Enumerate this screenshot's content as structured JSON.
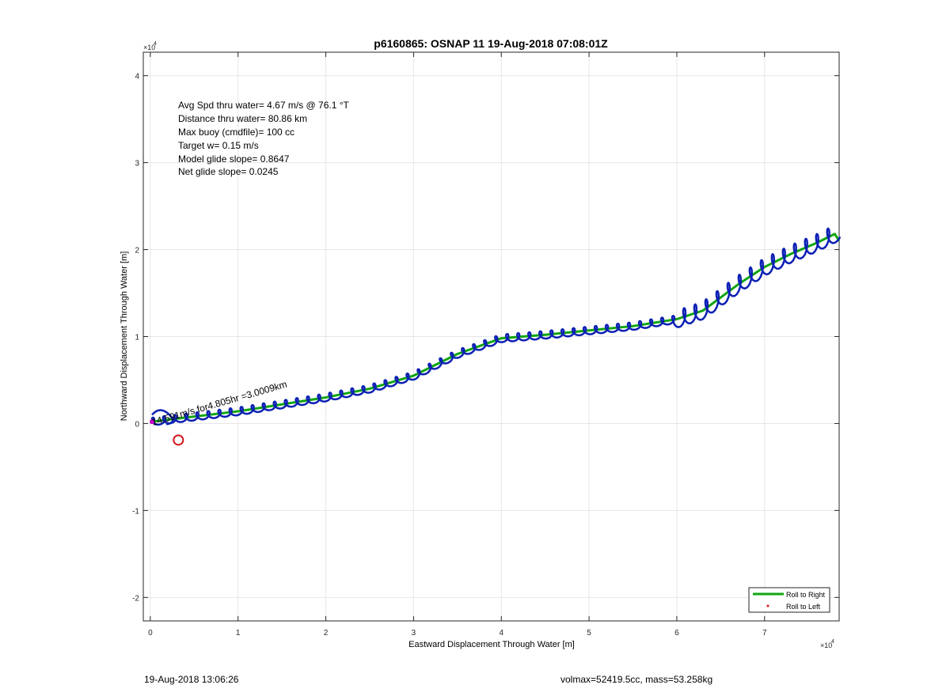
{
  "chart_data": {
    "type": "line",
    "title": "p6160865: OSNAP 11 19-Aug-2018 07:08:01Z",
    "xlabel": "Eastward Displacement Through Water [m]",
    "ylabel": "Northward Displacement Through Water [m]",
    "x_multiplier": "×10",
    "x_exponent": "4",
    "y_multiplier": "×10",
    "y_exponent": "4",
    "xlim": [
      -0.08,
      7.85
    ],
    "ylim": [
      -2.27,
      4.27
    ],
    "xticks": [
      0,
      1,
      2,
      3,
      4,
      5,
      6,
      7
    ],
    "yticks": [
      -2,
      -1,
      0,
      1,
      2,
      3,
      4
    ],
    "grid": true,
    "legend_position": "bottom-right",
    "legend": [
      {
        "label": "Roll to Right",
        "color": "#11a511",
        "marker": "line"
      },
      {
        "label": "Roll to Left",
        "color": "#e0151b",
        "marker": "dot"
      }
    ],
    "annotations": [
      "Avg Spd thru water=  4.67 m/s @  76.1 °T",
      "Distance thru water= 80.86 km",
      "Max buoy (cmdfile)= 100 cc",
      "Target w= 0.15 m/s",
      "Model glide slope= 0.8647",
      "Net glide slope= 0.0245"
    ],
    "arrow_label": "14.591m/s for4.805hr =3.0009km",
    "series": [
      {
        "name": "Roll to Right",
        "color": "#11a511",
        "x": [
          0.0,
          0.5,
          1.0,
          1.5,
          2.0,
          2.5,
          3.0,
          3.5,
          4.0,
          4.5,
          5.0,
          5.5,
          6.0,
          6.3,
          6.7,
          7.0,
          7.3,
          7.6,
          7.8,
          7.85
        ],
        "y": [
          0.02,
          0.08,
          0.14,
          0.22,
          0.3,
          0.4,
          0.55,
          0.8,
          0.98,
          1.02,
          1.07,
          1.12,
          1.2,
          1.3,
          1.6,
          1.8,
          1.95,
          2.08,
          2.18,
          2.1
        ]
      },
      {
        "name": "track",
        "color": "#0c20b4",
        "x": [
          0.0,
          0.5,
          1.0,
          1.5,
          2.0,
          2.5,
          3.0,
          3.5,
          4.0,
          4.5,
          5.0,
          5.5,
          6.0,
          6.3,
          6.7,
          7.0,
          7.3,
          7.6,
          7.8,
          7.85
        ],
        "y": [
          0.02,
          0.08,
          0.14,
          0.22,
          0.3,
          0.4,
          0.55,
          0.8,
          0.98,
          1.02,
          1.07,
          1.12,
          1.2,
          1.3,
          1.6,
          1.8,
          1.95,
          2.08,
          2.18,
          2.1
        ]
      }
    ],
    "markers": [
      {
        "name": "target-circle",
        "color": "#d4141a",
        "x": 0.32,
        "y": -0.19
      }
    ]
  },
  "footer": {
    "timestamp": "19-Aug-2018 13:06:26",
    "mass_info": "volmax=52419.5cc, mass=53.258kg"
  }
}
